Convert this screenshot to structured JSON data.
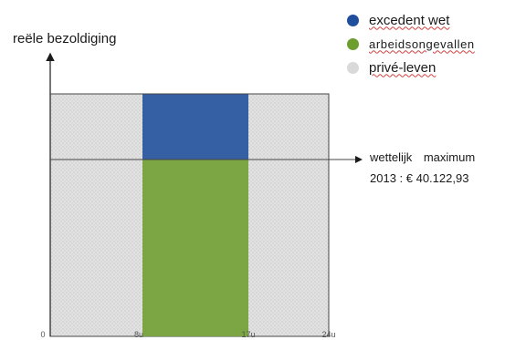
{
  "diagram": {
    "y_axis_label": "reële bezoldiging",
    "annotation_line1": "wettelijk maximum",
    "annotation_line2": "2013 : € 40.122,93",
    "x_ticks": [
      "0",
      "8u",
      "17u",
      "24u"
    ],
    "legend": [
      {
        "label": "excedent wet",
        "color": "#1f4e9c"
      },
      {
        "label": "arbeidsongevallen",
        "color": "#6e9e2e"
      },
      {
        "label": "privé-leven",
        "color": "#d9d9d9"
      }
    ]
  },
  "colors": {
    "excedent": "#1f4e9c",
    "arbeidsongevallen": "#6e9e2e",
    "prive": "#d9d9d9"
  }
}
